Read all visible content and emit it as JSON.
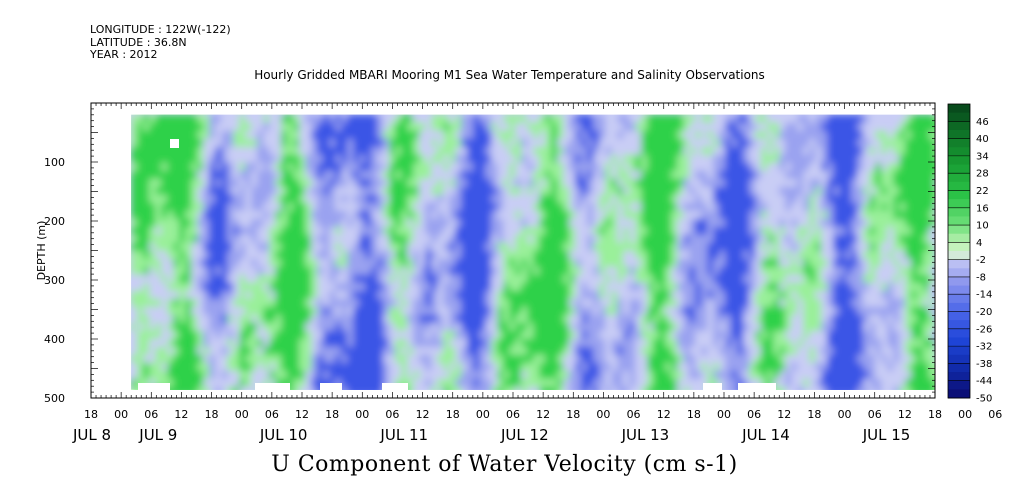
{
  "header": {
    "longitude": "LONGITUDE : 122W(-122)",
    "latitude": "LATITUDE : 36.8N",
    "year": "YEAR : 2012"
  },
  "chart_data": {
    "type": "heatmap",
    "title": "Hourly Gridded MBARI Mooring M1 Sea Water Temperature and Salinity Observations",
    "variable_label": "U Component of Water Velocity (cm s-1)",
    "ylabel": "DEPTH (m)",
    "ylim": [
      500,
      0
    ],
    "y_ticks": [
      100,
      200,
      300,
      400,
      500
    ],
    "x_hour_ticks": [
      "18",
      "00",
      "06",
      "12",
      "18",
      "00",
      "06",
      "12",
      "18",
      "00",
      "06",
      "12",
      "18",
      "00",
      "06",
      "12",
      "18",
      "00",
      "06",
      "12",
      "18",
      "00",
      "06",
      "12",
      "18",
      "00",
      "06",
      "12",
      "18",
      "00",
      "06",
      "12",
      "18"
    ],
    "x_day_labels": [
      "JUL 8",
      "JUL 9",
      "JUL 10",
      "JUL 11",
      "JUL 12",
      "JUL 13",
      "JUL 14",
      "JUL 15"
    ],
    "x_day_hours": [
      0,
      6,
      30,
      54,
      78,
      102,
      126,
      150
    ],
    "x_start_hour": -6,
    "x_end_hour": 162,
    "data_x_range_hours": [
      2,
      163
    ],
    "data_y_range_m": [
      20,
      485
    ],
    "colorbar_levels": [
      46,
      40,
      34,
      28,
      22,
      16,
      10,
      4,
      -2,
      -8,
      -14,
      -20,
      -26,
      -32,
      -38,
      -44,
      -50
    ],
    "colorbar_range": [
      -50,
      52
    ],
    "colors": {
      "strong_positive": "#0b4a1f",
      "positive": "#2ed14a",
      "weak_positive": "#9af09a",
      "near_zero": "#c9cdf5",
      "negative": "#9aa2f0",
      "strong_negative": "#3a55e6",
      "deep_negative": "#0a0a7a"
    }
  }
}
